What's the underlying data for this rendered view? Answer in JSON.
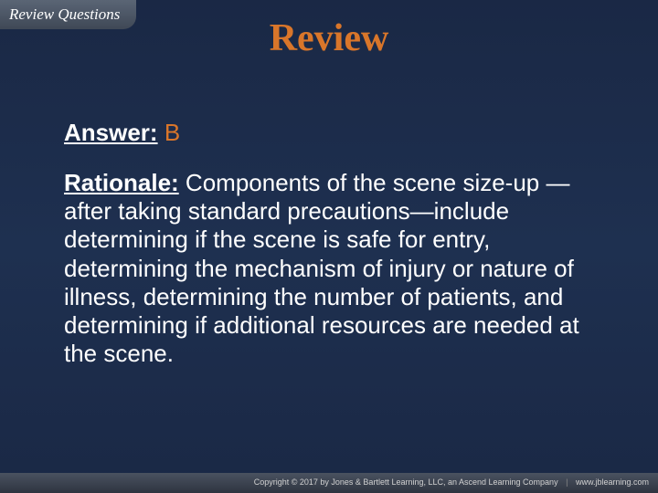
{
  "header": {
    "tab_label": "Review Questions"
  },
  "title": "Review",
  "answer": {
    "label": "Answer:",
    "value": "B"
  },
  "rationale": {
    "label": "Rationale:",
    "text": "Components of the scene size-up —after taking standard precautions—include determining if the scene is safe for entry, determining the mechanism of injury or nature of illness, determining the number of patients, and determining if additional resources are needed at the scene."
  },
  "footer": {
    "copyright": "Copyright © 2017 by Jones & Bartlett Learning, LLC, an Ascend Learning Company",
    "url": "www.jblearning.com"
  },
  "colors": {
    "background_top": "#1a2845",
    "background_mid": "#1e3050",
    "title_color": "#d9762a",
    "text_color": "#ffffff",
    "tab_bg_top": "#5a6575",
    "tab_bg_bottom": "#3f4856",
    "footer_bg": "#2e3440"
  },
  "typography": {
    "title_fontsize": 42,
    "body_fontsize": 26,
    "tab_fontsize": 17,
    "footer_fontsize": 9
  }
}
